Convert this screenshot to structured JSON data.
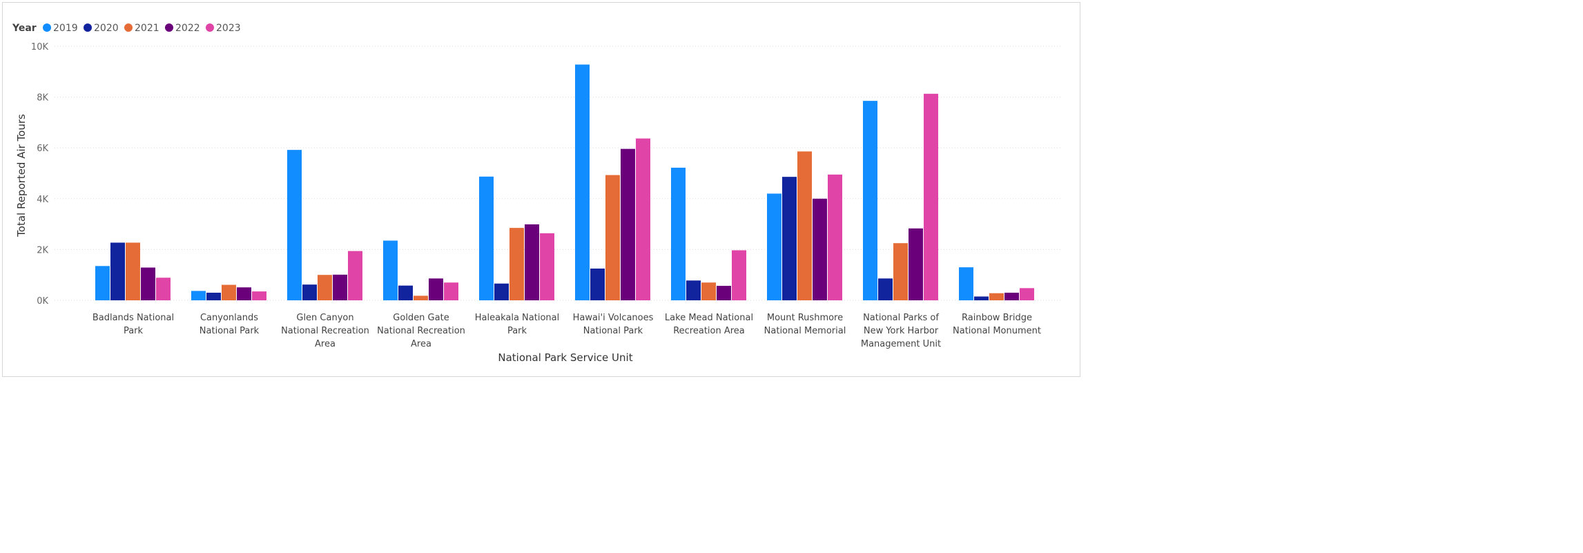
{
  "chart_data": {
    "type": "bar",
    "title": "",
    "legend_title": "Year",
    "legend_position": "top-left",
    "xlabel": "National Park Service Unit",
    "ylabel": "Total Reported Air Tours",
    "ylim": [
      0,
      10000
    ],
    "yticks": [
      0,
      2000,
      4000,
      6000,
      8000,
      10000
    ],
    "ytick_labels": [
      "0K",
      "2K",
      "4K",
      "6K",
      "8K",
      "10K"
    ],
    "grid": true,
    "categories": [
      "Badlands National Park",
      "Canyonlands National Park",
      "Glen Canyon National Recreation Area",
      "Golden Gate National Recreation Area",
      "Haleakala National Park",
      "Hawai'i Volcanoes National Park",
      "Lake Mead National Recreation Area",
      "Mount Rushmore National Memorial",
      "National Parks of New York Harbor Management Unit",
      "Rainbow Bridge National Monument"
    ],
    "category_label_lines": [
      [
        "Badlands National",
        "Park"
      ],
      [
        "Canyonlands",
        "National Park"
      ],
      [
        "Glen Canyon",
        "National Recreation",
        "Area"
      ],
      [
        "Golden Gate",
        "National Recreation",
        "Area"
      ],
      [
        "Haleakala National",
        "Park"
      ],
      [
        "Hawai'i Volcanoes",
        "National Park"
      ],
      [
        "Lake Mead National",
        "Recreation Area"
      ],
      [
        "Mount Rushmore",
        "National Memorial"
      ],
      [
        "National Parks of",
        "New York Harbor",
        "Management Unit"
      ],
      [
        "Rainbow Bridge",
        "National Monument"
      ]
    ],
    "series": [
      {
        "name": "2019",
        "color": "#118DFF",
        "values": [
          1350,
          370,
          5920,
          2350,
          4870,
          9280,
          5220,
          4200,
          7850,
          1300
        ]
      },
      {
        "name": "2020",
        "color": "#12239E",
        "values": [
          2270,
          300,
          620,
          580,
          660,
          1250,
          780,
          4860,
          860,
          150
        ]
      },
      {
        "name": "2021",
        "color": "#E66C37",
        "values": [
          2270,
          610,
          1000,
          180,
          2850,
          4930,
          700,
          5860,
          2250,
          280
        ]
      },
      {
        "name": "2022",
        "color": "#6B007B",
        "values": [
          1290,
          510,
          1010,
          860,
          2990,
          5960,
          570,
          4000,
          2830,
          300
        ]
      },
      {
        "name": "2023",
        "color": "#E044A7",
        "values": [
          890,
          350,
          1940,
          700,
          2640,
          6370,
          1970,
          4950,
          8130,
          480
        ]
      }
    ]
  }
}
